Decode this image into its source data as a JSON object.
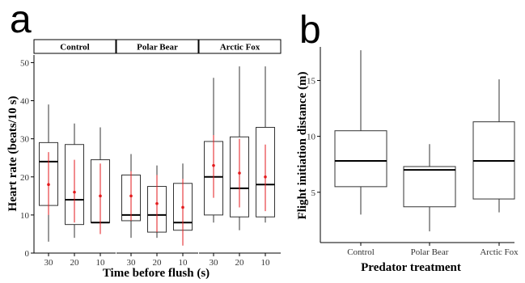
{
  "panel_a": {
    "letter": "a",
    "facets": [
      "Control",
      "Polar Bear",
      "Arctic Fox"
    ]
  },
  "panel_b": {
    "letter": "b"
  },
  "chart_data": [
    {
      "type": "box",
      "panel": "a",
      "xlabel": "Time before flush (s)",
      "ylabel": "Heart rate (beats/10 s)",
      "ylim": [
        0,
        52
      ],
      "yticks": [
        0,
        10,
        20,
        30,
        40,
        50
      ],
      "categories": [
        "30",
        "20",
        "10"
      ],
      "facets": [
        "Control",
        "Polar Bear",
        "Arctic Fox"
      ],
      "grid": false,
      "boxes": [
        {
          "facet": "Control",
          "x": "30",
          "min": 3,
          "q1": 12.5,
          "median": 24,
          "q3": 29,
          "max": 39,
          "mean": 18,
          "ci": [
            10,
            26.5
          ]
        },
        {
          "facet": "Control",
          "x": "20",
          "min": 4,
          "q1": 7.5,
          "median": 14,
          "q3": 28.5,
          "max": 34,
          "mean": 16,
          "ci": [
            8,
            24.5
          ]
        },
        {
          "facet": "Control",
          "x": "10",
          "min": 5,
          "q1": 8,
          "median": 8,
          "q3": 24.5,
          "max": 33,
          "mean": 15,
          "ci": [
            5,
            23.5
          ]
        },
        {
          "facet": "Polar Bear",
          "x": "30",
          "min": 4,
          "q1": 8.5,
          "median": 10,
          "q3": 20.5,
          "max": 26,
          "mean": 15,
          "ci": [
            8.5,
            21.5
          ]
        },
        {
          "facet": "Polar Bear",
          "x": "20",
          "min": 4,
          "q1": 5.5,
          "median": 10,
          "q3": 17.5,
          "max": 23,
          "mean": 13,
          "ci": [
            5.5,
            20.5
          ]
        },
        {
          "facet": "Polar Bear",
          "x": "10",
          "min": 2,
          "q1": 6,
          "median": 8,
          "q3": 18.3,
          "max": 23.5,
          "mean": 12,
          "ci": [
            2,
            19.5
          ]
        },
        {
          "facet": "Arctic Fox",
          "x": "30",
          "min": 8,
          "q1": 10,
          "median": 20,
          "q3": 29.3,
          "max": 46,
          "mean": 23,
          "ci": [
            14.5,
            31
          ]
        },
        {
          "facet": "Arctic Fox",
          "x": "20",
          "min": 6,
          "q1": 9.5,
          "median": 17,
          "q3": 30.5,
          "max": 49,
          "mean": 21,
          "ci": [
            12,
            30
          ]
        },
        {
          "facet": "Arctic Fox",
          "x": "10",
          "min": 8,
          "q1": 9.5,
          "median": 18,
          "q3": 33,
          "max": 49,
          "mean": 20,
          "ci": [
            11,
            28.5
          ]
        }
      ]
    },
    {
      "type": "box",
      "panel": "b",
      "xlabel": "Predator treatment",
      "ylabel": "Flight initiation distance (m)",
      "ylim": [
        0.5,
        18
      ],
      "yticks": [
        5,
        10,
        15
      ],
      "categories": [
        "Control",
        "Polar Bear",
        "Arctic Fox"
      ],
      "grid": false,
      "boxes": [
        {
          "x": "Control",
          "min": 3,
          "q1": 5.5,
          "median": 7.8,
          "q3": 10.5,
          "max": 17.7
        },
        {
          "x": "Polar Bear",
          "min": 1.5,
          "q1": 3.7,
          "median": 7,
          "q3": 7.3,
          "max": 9.3
        },
        {
          "x": "Arctic Fox",
          "min": 3.2,
          "q1": 4.4,
          "median": 7.8,
          "q3": 11.3,
          "max": 15.1
        }
      ]
    }
  ]
}
